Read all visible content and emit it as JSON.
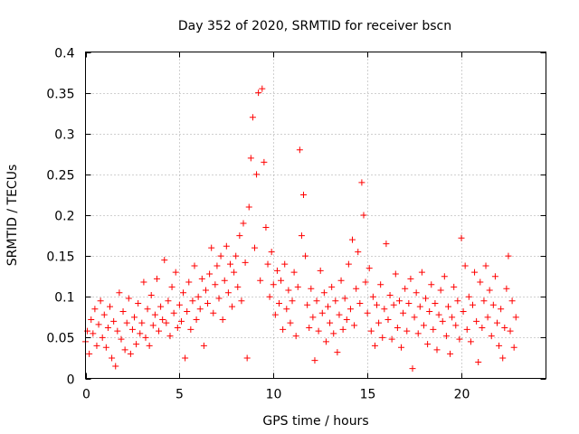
{
  "chart_data": {
    "type": "scatter",
    "title": "Day 352 of 2020, SRMTID for receiver bscn",
    "xlabel": "GPS time / hours",
    "ylabel": "SRMTID / TECUs",
    "xlim": [
      0,
      24.5
    ],
    "ylim": [
      0,
      0.4
    ],
    "xticks": [
      0,
      5,
      10,
      15,
      20
    ],
    "xtick_labels": [
      "0",
      "5",
      "10",
      "15",
      "20"
    ],
    "yticks": [
      0,
      0.05,
      0.1,
      0.15,
      0.2,
      0.25,
      0.3,
      0.35,
      0.4
    ],
    "ytick_labels": [
      "0",
      "0.05",
      "0.1",
      "0.15",
      "0.2",
      "0.25",
      "0.3",
      "0.35",
      "0.4"
    ],
    "grid": true,
    "marker": "plus",
    "color": "#ff0000",
    "series": [
      {
        "name": "SRMTID",
        "points": [
          [
            0.0,
            0.045
          ],
          [
            0.1,
            0.058
          ],
          [
            0.2,
            0.03
          ],
          [
            0.3,
            0.072
          ],
          [
            0.4,
            0.055
          ],
          [
            0.5,
            0.085
          ],
          [
            0.6,
            0.04
          ],
          [
            0.7,
            0.066
          ],
          [
            0.8,
            0.095
          ],
          [
            0.9,
            0.05
          ],
          [
            1.0,
            0.078
          ],
          [
            1.1,
            0.038
          ],
          [
            1.2,
            0.062
          ],
          [
            1.3,
            0.088
          ],
          [
            1.4,
            0.025
          ],
          [
            1.5,
            0.07
          ],
          [
            1.6,
            0.015
          ],
          [
            1.7,
            0.058
          ],
          [
            1.8,
            0.105
          ],
          [
            1.9,
            0.048
          ],
          [
            2.0,
            0.082
          ],
          [
            2.1,
            0.035
          ],
          [
            2.2,
            0.068
          ],
          [
            2.3,
            0.098
          ],
          [
            2.4,
            0.03
          ],
          [
            2.5,
            0.06
          ],
          [
            2.6,
            0.075
          ],
          [
            2.7,
            0.042
          ],
          [
            2.8,
            0.092
          ],
          [
            2.9,
            0.055
          ],
          [
            3.0,
            0.068
          ],
          [
            3.1,
            0.118
          ],
          [
            3.2,
            0.05
          ],
          [
            3.3,
            0.085
          ],
          [
            3.4,
            0.04
          ],
          [
            3.5,
            0.102
          ],
          [
            3.6,
            0.065
          ],
          [
            3.7,
            0.078
          ],
          [
            3.8,
            0.122
          ],
          [
            3.9,
            0.058
          ],
          [
            4.0,
            0.088
          ],
          [
            4.1,
            0.072
          ],
          [
            4.2,
            0.145
          ],
          [
            4.3,
            0.068
          ],
          [
            4.4,
            0.095
          ],
          [
            4.5,
            0.052
          ],
          [
            4.6,
            0.112
          ],
          [
            4.7,
            0.08
          ],
          [
            4.8,
            0.13
          ],
          [
            4.9,
            0.062
          ],
          [
            5.0,
            0.09
          ],
          [
            5.1,
            0.07
          ],
          [
            5.2,
            0.105
          ],
          [
            5.3,
            0.025
          ],
          [
            5.4,
            0.082
          ],
          [
            5.5,
            0.118
          ],
          [
            5.6,
            0.06
          ],
          [
            5.7,
            0.095
          ],
          [
            5.8,
            0.138
          ],
          [
            5.9,
            0.072
          ],
          [
            6.0,
            0.1
          ],
          [
            6.1,
            0.085
          ],
          [
            6.2,
            0.122
          ],
          [
            6.3,
            0.04
          ],
          [
            6.4,
            0.108
          ],
          [
            6.5,
            0.092
          ],
          [
            6.6,
            0.128
          ],
          [
            6.7,
            0.16
          ],
          [
            6.8,
            0.08
          ],
          [
            6.9,
            0.115
          ],
          [
            7.0,
            0.138
          ],
          [
            7.1,
            0.098
          ],
          [
            7.2,
            0.15
          ],
          [
            7.3,
            0.072
          ],
          [
            7.4,
            0.12
          ],
          [
            7.5,
            0.162
          ],
          [
            7.6,
            0.105
          ],
          [
            7.7,
            0.14
          ],
          [
            7.8,
            0.088
          ],
          [
            7.9,
            0.13
          ],
          [
            8.0,
            0.15
          ],
          [
            8.1,
            0.112
          ],
          [
            8.2,
            0.175
          ],
          [
            8.3,
            0.095
          ],
          [
            8.4,
            0.19
          ],
          [
            8.5,
            0.142
          ],
          [
            8.6,
            0.025
          ],
          [
            8.7,
            0.21
          ],
          [
            8.8,
            0.27
          ],
          [
            8.9,
            0.32
          ],
          [
            9.0,
            0.16
          ],
          [
            9.1,
            0.25
          ],
          [
            9.2,
            0.35
          ],
          [
            9.3,
            0.12
          ],
          [
            9.4,
            0.355
          ],
          [
            9.5,
            0.265
          ],
          [
            9.6,
            0.185
          ],
          [
            9.7,
            0.14
          ],
          [
            9.8,
            0.1
          ],
          [
            9.9,
            0.155
          ],
          [
            10.0,
            0.115
          ],
          [
            10.1,
            0.078
          ],
          [
            10.2,
            0.132
          ],
          [
            10.3,
            0.092
          ],
          [
            10.4,
            0.12
          ],
          [
            10.5,
            0.06
          ],
          [
            10.6,
            0.14
          ],
          [
            10.7,
            0.085
          ],
          [
            10.8,
            0.108
          ],
          [
            10.9,
            0.068
          ],
          [
            11.0,
            0.095
          ],
          [
            11.1,
            0.13
          ],
          [
            11.2,
            0.052
          ],
          [
            11.3,
            0.112
          ],
          [
            11.4,
            0.28
          ],
          [
            11.5,
            0.175
          ],
          [
            11.6,
            0.225
          ],
          [
            11.7,
            0.15
          ],
          [
            11.8,
            0.09
          ],
          [
            11.9,
            0.062
          ],
          [
            12.0,
            0.11
          ],
          [
            12.1,
            0.075
          ],
          [
            12.2,
            0.022
          ],
          [
            12.3,
            0.095
          ],
          [
            12.4,
            0.058
          ],
          [
            12.5,
            0.132
          ],
          [
            12.6,
            0.08
          ],
          [
            12.7,
            0.105
          ],
          [
            12.8,
            0.045
          ],
          [
            12.9,
            0.088
          ],
          [
            13.0,
            0.068
          ],
          [
            13.1,
            0.112
          ],
          [
            13.2,
            0.055
          ],
          [
            13.3,
            0.095
          ],
          [
            13.4,
            0.032
          ],
          [
            13.5,
            0.078
          ],
          [
            13.6,
            0.12
          ],
          [
            13.7,
            0.06
          ],
          [
            13.8,
            0.098
          ],
          [
            13.9,
            0.072
          ],
          [
            14.0,
            0.14
          ],
          [
            14.1,
            0.085
          ],
          [
            14.2,
            0.17
          ],
          [
            14.3,
            0.065
          ],
          [
            14.4,
            0.11
          ],
          [
            14.5,
            0.155
          ],
          [
            14.6,
            0.092
          ],
          [
            14.7,
            0.24
          ],
          [
            14.8,
            0.2
          ],
          [
            14.9,
            0.118
          ],
          [
            15.0,
            0.08
          ],
          [
            15.1,
            0.135
          ],
          [
            15.2,
            0.058
          ],
          [
            15.3,
            0.1
          ],
          [
            15.4,
            0.04
          ],
          [
            15.5,
            0.09
          ],
          [
            15.6,
            0.068
          ],
          [
            15.7,
            0.115
          ],
          [
            15.8,
            0.05
          ],
          [
            15.9,
            0.085
          ],
          [
            16.0,
            0.165
          ],
          [
            16.1,
            0.072
          ],
          [
            16.2,
            0.102
          ],
          [
            16.3,
            0.048
          ],
          [
            16.4,
            0.09
          ],
          [
            16.5,
            0.128
          ],
          [
            16.6,
            0.062
          ],
          [
            16.7,
            0.095
          ],
          [
            16.8,
            0.038
          ],
          [
            16.9,
            0.08
          ],
          [
            17.0,
            0.11
          ],
          [
            17.1,
            0.058
          ],
          [
            17.2,
            0.092
          ],
          [
            17.3,
            0.122
          ],
          [
            17.4,
            0.012
          ],
          [
            17.5,
            0.075
          ],
          [
            17.6,
            0.105
          ],
          [
            17.7,
            0.055
          ],
          [
            17.8,
            0.088
          ],
          [
            17.9,
            0.13
          ],
          [
            18.0,
            0.065
          ],
          [
            18.1,
            0.098
          ],
          [
            18.2,
            0.042
          ],
          [
            18.3,
            0.082
          ],
          [
            18.4,
            0.115
          ],
          [
            18.5,
            0.06
          ],
          [
            18.6,
            0.092
          ],
          [
            18.7,
            0.035
          ],
          [
            18.8,
            0.078
          ],
          [
            18.9,
            0.108
          ],
          [
            19.0,
            0.07
          ],
          [
            19.1,
            0.125
          ],
          [
            19.2,
            0.052
          ],
          [
            19.3,
            0.088
          ],
          [
            19.4,
            0.03
          ],
          [
            19.5,
            0.075
          ],
          [
            19.6,
            0.112
          ],
          [
            19.7,
            0.065
          ],
          [
            19.8,
            0.095
          ],
          [
            19.9,
            0.048
          ],
          [
            20.0,
            0.172
          ],
          [
            20.1,
            0.082
          ],
          [
            20.2,
            0.138
          ],
          [
            20.3,
            0.06
          ],
          [
            20.4,
            0.1
          ],
          [
            20.5,
            0.045
          ],
          [
            20.6,
            0.09
          ],
          [
            20.7,
            0.13
          ],
          [
            20.8,
            0.07
          ],
          [
            20.9,
            0.02
          ],
          [
            21.0,
            0.118
          ],
          [
            21.1,
            0.062
          ],
          [
            21.2,
            0.095
          ],
          [
            21.3,
            0.138
          ],
          [
            21.4,
            0.075
          ],
          [
            21.5,
            0.108
          ],
          [
            21.6,
            0.052
          ],
          [
            21.7,
            0.09
          ],
          [
            21.8,
            0.125
          ],
          [
            21.9,
            0.068
          ],
          [
            22.0,
            0.04
          ],
          [
            22.1,
            0.085
          ],
          [
            22.2,
            0.025
          ],
          [
            22.3,
            0.062
          ],
          [
            22.4,
            0.11
          ],
          [
            22.5,
            0.15
          ],
          [
            22.6,
            0.058
          ],
          [
            22.7,
            0.095
          ],
          [
            22.8,
            0.038
          ],
          [
            22.9,
            0.075
          ]
        ]
      }
    ]
  }
}
